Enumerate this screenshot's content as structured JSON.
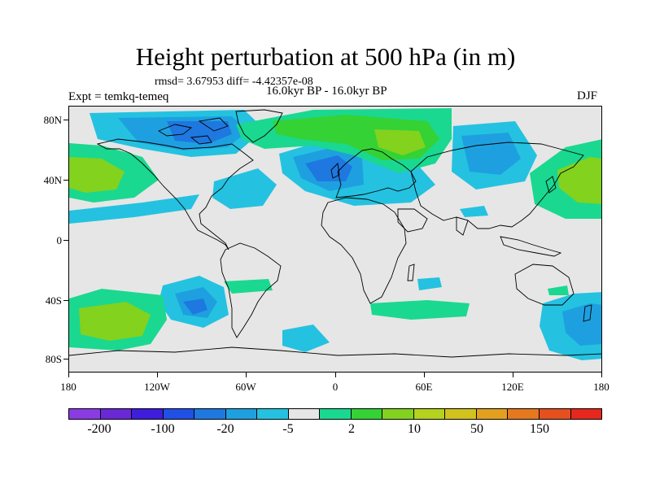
{
  "header": {
    "title": "Height perturbation at 500 hPa (in m)",
    "stats": "rmsd= 3.67953 diff= -4.42357e-08",
    "expt": "Expt = temkq-temeq",
    "period": "16.0kyr BP - 16.0kyr BP",
    "season": "DJF"
  },
  "axes": {
    "y_ticks": [
      "80N",
      "40N",
      "0",
      "40S",
      "80S"
    ],
    "x_ticks": [
      "180",
      "120W",
      "60W",
      "0",
      "60E",
      "120E",
      "180"
    ]
  },
  "colorbar": {
    "colors": [
      "#8a3be3",
      "#6a28d6",
      "#3e1edc",
      "#2050e6",
      "#1e78e0",
      "#1ea0e0",
      "#24c2e0",
      "#e6e6e6",
      "#1ad890",
      "#34d234",
      "#82d21e",
      "#b4d21e",
      "#d2c21e",
      "#e2a01e",
      "#e6781e",
      "#e6501e",
      "#e6281e"
    ],
    "labels": [
      "-200",
      "-100",
      "-20",
      "-5",
      "2",
      "10",
      "50",
      "150"
    ]
  },
  "chart_data": {
    "type": "heatmap",
    "title": "Height perturbation at 500 hPa (in m)",
    "x_range": [
      -180,
      180
    ],
    "y_range": [
      -90,
      90
    ],
    "features": [
      {
        "region": "North America / Canada",
        "sign": "negative",
        "level": "-20"
      },
      {
        "region": "Europe / North Atlantic",
        "sign": "negative",
        "level": "-20"
      },
      {
        "region": "Central Siberia",
        "sign": "negative",
        "level": "-20"
      },
      {
        "region": "North-east Pacific",
        "sign": "positive",
        "level": "10"
      },
      {
        "region": "North-west Pacific",
        "sign": "positive",
        "level": "10"
      },
      {
        "region": "Scandinavia / Western Russia",
        "sign": "positive",
        "level": "10"
      },
      {
        "region": "South Pacific 50S",
        "sign": "positive",
        "level": "10"
      },
      {
        "region": "South Pacific 40S",
        "sign": "negative",
        "level": "-20"
      },
      {
        "region": "Southern Ocean south of Australia",
        "sign": "negative",
        "level": "-20"
      },
      {
        "region": "Southern Indian Ocean",
        "sign": "positive",
        "level": "2"
      }
    ]
  }
}
